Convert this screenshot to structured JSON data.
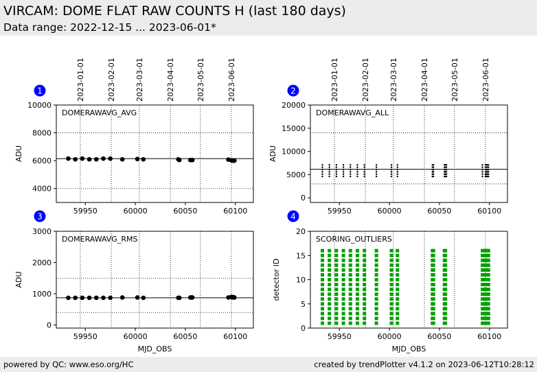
{
  "header": {
    "title": "VIRCAM: DOME FLAT RAW COUNTS H (last 180 days)",
    "subtitle": "Data range: 2022-12-15 ... 2023-06-01*"
  },
  "footer": {
    "left": "powered by QC: www.eso.org/HC",
    "right": "created by trendPlotter v4.1.2 on 2023-06-12T10:28:12"
  },
  "colors": {
    "background": "#ffffff",
    "band": "#ececec",
    "badge": "#0000ff",
    "points": "#000000",
    "outliers": "#00a000"
  },
  "chart_data": [
    {
      "type": "scatter",
      "badge": "1",
      "label": "DOMERAWAVG_AVG",
      "ylabel": "ADU",
      "xlabel": "",
      "xlim": [
        59921,
        60118
      ],
      "ylim": [
        3000,
        10000
      ],
      "yticks": [
        4000,
        6000,
        8000,
        10000
      ],
      "xticks": [
        59950,
        60000,
        60050,
        60100
      ],
      "date_ticks": [
        {
          "mjd": 59945,
          "label": "2023-01-01"
        },
        {
          "mjd": 59976,
          "label": "2023-02-01"
        },
        {
          "mjd": 60004,
          "label": "2023-03-01"
        },
        {
          "mjd": 60035,
          "label": "2023-04-01"
        },
        {
          "mjd": 60065,
          "label": "2023-05-01"
        },
        {
          "mjd": 60096,
          "label": "2023-06-01"
        }
      ],
      "hgrid": [
        4000,
        8000
      ],
      "ref_line": 6150,
      "x": [
        59933,
        59940,
        59947,
        59954,
        59961,
        59968,
        59975,
        59987,
        60002,
        60008,
        60043,
        60044,
        60055,
        60056,
        60057,
        60093,
        60096,
        60097,
        60098,
        60099
      ],
      "y": [
        6150,
        6100,
        6150,
        6100,
        6100,
        6150,
        6150,
        6100,
        6120,
        6100,
        6100,
        6050,
        6050,
        6050,
        6050,
        6080,
        6030,
        6020,
        6000,
        6010
      ]
    },
    {
      "type": "scatter",
      "badge": "2",
      "label": "DOMERAWAVG_ALL",
      "ylabel": "ADU",
      "xlabel": "",
      "xlim": [
        59921,
        60118
      ],
      "ylim": [
        -1000,
        20000
      ],
      "yticks": [
        0,
        5000,
        10000,
        15000,
        20000
      ],
      "xticks": [
        59950,
        60000,
        60050,
        60100
      ],
      "date_ticks": [
        {
          "mjd": 59945,
          "label": "2023-01-01"
        },
        {
          "mjd": 59976,
          "label": "2023-02-01"
        },
        {
          "mjd": 60004,
          "label": "2023-03-01"
        },
        {
          "mjd": 60035,
          "label": "2023-04-01"
        },
        {
          "mjd": 60065,
          "label": "2023-05-01"
        },
        {
          "mjd": 60096,
          "label": "2023-06-01"
        }
      ],
      "hgrid": [
        3000,
        14000
      ],
      "ref_line": 6150,
      "strip_x": [
        59933,
        59940,
        59947,
        59954,
        59961,
        59968,
        59975,
        59987,
        60002,
        60008,
        60043,
        60044,
        60055,
        60056,
        60057,
        60093,
        60096,
        60097,
        60098,
        60099
      ],
      "strip_y": [
        4600,
        5100,
        5600,
        6100,
        6600,
        7100
      ]
    },
    {
      "type": "scatter",
      "badge": "3",
      "label": "DOMERAWAVG_RMS",
      "ylabel": "ADU",
      "xlabel": "MJD_OBS",
      "xlim": [
        59921,
        60118
      ],
      "ylim": [
        -100,
        3000
      ],
      "yticks": [
        0,
        1000,
        2000,
        3000
      ],
      "xticks": [
        59950,
        60000,
        60050,
        60100
      ],
      "date_ticks": [
        {
          "mjd": 59945,
          "label": ""
        },
        {
          "mjd": 59976,
          "label": ""
        },
        {
          "mjd": 60004,
          "label": ""
        },
        {
          "mjd": 60035,
          "label": ""
        },
        {
          "mjd": 60065,
          "label": ""
        },
        {
          "mjd": 60096,
          "label": ""
        }
      ],
      "hgrid": [
        400,
        1500
      ],
      "ref_line": 870,
      "x": [
        59933,
        59940,
        59947,
        59954,
        59961,
        59968,
        59975,
        59987,
        60002,
        60008,
        60043,
        60044,
        60055,
        60056,
        60057,
        60093,
        60096,
        60097,
        60098,
        60099
      ],
      "y": [
        870,
        870,
        870,
        870,
        870,
        870,
        870,
        880,
        880,
        870,
        870,
        870,
        880,
        880,
        880,
        880,
        900,
        880,
        890,
        880
      ]
    },
    {
      "type": "scatter",
      "badge": "4",
      "label": "SCORING_OUTLIERS",
      "ylabel": "detector ID",
      "xlabel": "MJD_OBS",
      "xlim": [
        59921,
        60118
      ],
      "ylim": [
        0,
        20
      ],
      "yticks": [
        0,
        5,
        10,
        15,
        20
      ],
      "xticks": [
        59950,
        60000,
        60050,
        60100
      ],
      "date_ticks": [
        {
          "mjd": 59945,
          "label": ""
        },
        {
          "mjd": 59976,
          "label": ""
        },
        {
          "mjd": 60004,
          "label": ""
        },
        {
          "mjd": 60035,
          "label": ""
        },
        {
          "mjd": 60065,
          "label": ""
        },
        {
          "mjd": 60096,
          "label": ""
        }
      ],
      "hgrid": [],
      "ref_line": null,
      "strip_x": [
        59933,
        59940,
        59947,
        59954,
        59961,
        59968,
        59975,
        59987,
        60002,
        60008,
        60043,
        60044,
        60055,
        60056,
        60093,
        60095,
        60096,
        60097,
        60098,
        60099
      ],
      "strip_y": [
        1,
        2,
        3,
        4,
        5,
        6,
        7,
        8,
        9,
        10,
        11,
        12,
        13,
        14,
        15,
        16
      ]
    }
  ]
}
